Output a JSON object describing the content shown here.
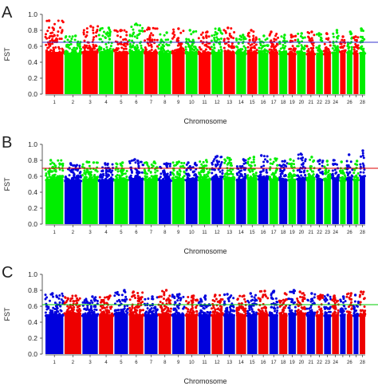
{
  "chart_data": [
    {
      "panel": "A",
      "type": "scatter",
      "ylabel": "FST",
      "xlabel": "Chromosome",
      "ylim": [
        0,
        1.0
      ],
      "yticks": [
        "0.0",
        "0.2",
        "0.4",
        "0.6",
        "0.8",
        "1.0"
      ],
      "chromosome_labels": [
        "1",
        "2",
        "3",
        "4",
        "5",
        "6",
        "7",
        "8",
        "9",
        "10",
        "11",
        "12",
        "13",
        "14",
        "15",
        "16",
        "17",
        "18",
        "19",
        "20",
        "21",
        "22",
        "23",
        "24",
        "",
        "26",
        "",
        "28"
      ],
      "colors": [
        "#ff0000",
        "#00ee00"
      ],
      "threshold": 0.65,
      "threshold_color": "#3333cc",
      "chromosome_max": [
        0.92,
        0.73,
        0.85,
        0.83,
        0.8,
        0.88,
        0.83,
        0.77,
        0.82,
        0.8,
        0.78,
        0.82,
        0.83,
        0.74,
        0.8,
        0.73,
        0.78,
        0.74,
        0.74,
        0.76,
        0.78,
        0.76,
        0.76,
        0.8,
        0.72,
        0.78,
        0.72,
        0.82
      ],
      "chromosome_median": [
        0.41,
        0.4,
        0.42,
        0.41,
        0.41,
        0.42,
        0.41,
        0.4,
        0.41,
        0.41,
        0.4,
        0.41,
        0.41,
        0.4,
        0.41,
        0.4,
        0.41,
        0.4,
        0.4,
        0.41,
        0.4,
        0.4,
        0.4,
        0.41,
        0.4,
        0.41,
        0.4,
        0.41
      ]
    },
    {
      "panel": "B",
      "type": "scatter",
      "ylabel": "FST",
      "xlabel": "Chromosome",
      "ylim": [
        0,
        1.0
      ],
      "yticks": [
        "0.0",
        "0.2",
        "0.4",
        "0.6",
        "0.8",
        "1.0"
      ],
      "chromosome_labels": [
        "1",
        "2",
        "3",
        "4",
        "5",
        "6",
        "7",
        "8",
        "9",
        "10",
        "11",
        "12",
        "13",
        "14",
        "15",
        "16",
        "17",
        "18",
        "19",
        "20",
        "21",
        "22",
        "23",
        "24",
        "",
        "26",
        "",
        "28"
      ],
      "colors": [
        "#00ee00",
        "#0000dd"
      ],
      "threshold": 0.7,
      "threshold_color": "#dd0000",
      "chromosome_max": [
        0.8,
        0.76,
        0.78,
        0.76,
        0.77,
        0.81,
        0.78,
        0.76,
        0.78,
        0.77,
        0.8,
        0.85,
        0.83,
        0.81,
        0.84,
        0.86,
        0.82,
        0.79,
        0.81,
        0.88,
        0.84,
        0.8,
        0.79,
        0.8,
        0.78,
        0.87,
        0.79,
        0.92
      ],
      "chromosome_median": [
        0.45,
        0.44,
        0.45,
        0.44,
        0.45,
        0.46,
        0.45,
        0.44,
        0.45,
        0.45,
        0.45,
        0.46,
        0.46,
        0.45,
        0.46,
        0.46,
        0.45,
        0.45,
        0.45,
        0.46,
        0.45,
        0.45,
        0.45,
        0.45,
        0.44,
        0.46,
        0.45,
        0.47
      ]
    },
    {
      "panel": "C",
      "type": "scatter",
      "ylabel": "FST",
      "xlabel": "Chromosome",
      "ylim": [
        0,
        1.0
      ],
      "yticks": [
        "0.0",
        "0.2",
        "0.4",
        "0.6",
        "0.8",
        "1.0"
      ],
      "chromosome_labels": [
        "1",
        "2",
        "3",
        "4",
        "5",
        "6",
        "7",
        "8",
        "9",
        "10",
        "11",
        "12",
        "13",
        "14",
        "15",
        "16",
        "17",
        "18",
        "19",
        "20",
        "21",
        "22",
        "23",
        "24",
        "",
        "26",
        "",
        "28"
      ],
      "colors": [
        "#0000dd",
        "#ee0000"
      ],
      "threshold": 0.62,
      "threshold_color": "#00cc00",
      "chromosome_max": [
        0.76,
        0.73,
        0.72,
        0.73,
        0.8,
        0.78,
        0.72,
        0.8,
        0.75,
        0.73,
        0.73,
        0.74,
        0.75,
        0.73,
        0.76,
        0.79,
        0.79,
        0.76,
        0.8,
        0.78,
        0.76,
        0.74,
        0.74,
        0.73,
        0.72,
        0.76,
        0.74,
        0.78
      ],
      "chromosome_median": [
        0.38,
        0.4,
        0.38,
        0.38,
        0.39,
        0.38,
        0.38,
        0.39,
        0.38,
        0.38,
        0.38,
        0.38,
        0.38,
        0.38,
        0.38,
        0.39,
        0.38,
        0.38,
        0.39,
        0.4,
        0.38,
        0.38,
        0.38,
        0.38,
        0.38,
        0.38,
        0.38,
        0.38
      ]
    }
  ]
}
